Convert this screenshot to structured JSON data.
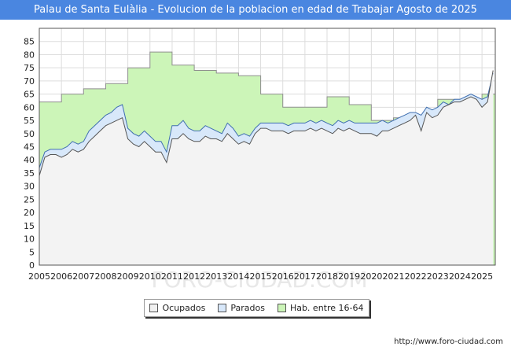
{
  "title": "Palau de Santa Eulàlia - Evolucion de la poblacion en edad de Trabajar Agosto de 2025",
  "watermark": "FORO-CIUDAD.COM",
  "source": "http://www.foro-ciudad.com",
  "colors": {
    "title_bg": "#4a86e0",
    "hab_fill": "#ccf5b8",
    "hab_line": "#8f8f8f",
    "parados_fill": "#d8e8fa",
    "parados_line": "#3f6fb0",
    "ocupados_fill": "#f3f3f3",
    "ocupados_line": "#555555"
  },
  "legend": [
    {
      "label": "Ocupados",
      "color": "#f0f0f0"
    },
    {
      "label": "Parados",
      "color": "#d8e8fa"
    },
    {
      "label": "Hab. entre 16-64",
      "color": "#ccf5b8"
    }
  ],
  "chart_data": {
    "type": "area",
    "title": "Palau de Santa Eulàlia - Evolucion de la poblacion en edad de Trabajar Agosto de 2025",
    "xlabel": "",
    "ylabel": "",
    "xlim": [
      2005,
      2025.6
    ],
    "ylim": [
      0,
      90
    ],
    "x_ticks": [
      "2005",
      "2006",
      "2007",
      "2008",
      "2009",
      "2010",
      "2011",
      "2012",
      "2013",
      "2014",
      "2015",
      "2016",
      "2017",
      "2018",
      "2019",
      "2020",
      "2021",
      "2022",
      "2023",
      "2024",
      "2025"
    ],
    "y_ticks": [
      0,
      5,
      10,
      15,
      20,
      25,
      30,
      35,
      40,
      45,
      50,
      55,
      60,
      65,
      70,
      75,
      80,
      85
    ],
    "grid": true,
    "legend_position": "bottom",
    "series": [
      {
        "name": "Hab. entre 16-64",
        "step": true,
        "x": [
          2005,
          2006,
          2007,
          2008,
          2009,
          2010,
          2011,
          2012,
          2013,
          2014,
          2015,
          2016,
          2017,
          2018,
          2019,
          2020,
          2021,
          2022,
          2023,
          2024,
          2025
        ],
        "values": [
          62,
          65,
          67,
          69,
          75,
          81,
          76,
          74,
          73,
          72,
          65,
          60,
          60,
          64,
          61,
          55,
          56,
          57,
          63,
          63,
          65
        ]
      },
      {
        "name": "Parados",
        "x": [
          2005,
          2005.25,
          2005.5,
          2005.75,
          2006,
          2006.25,
          2006.5,
          2006.75,
          2007,
          2007.25,
          2007.5,
          2007.75,
          2008,
          2008.25,
          2008.5,
          2008.75,
          2009,
          2009.25,
          2009.5,
          2009.75,
          2010,
          2010.25,
          2010.5,
          2010.75,
          2011,
          2011.25,
          2011.5,
          2011.75,
          2012,
          2012.25,
          2012.5,
          2012.75,
          2013,
          2013.25,
          2013.5,
          2013.75,
          2014,
          2014.25,
          2014.5,
          2014.75,
          2015,
          2015.25,
          2015.5,
          2015.75,
          2016,
          2016.25,
          2016.5,
          2016.75,
          2017,
          2017.25,
          2017.5,
          2017.75,
          2018,
          2018.25,
          2018.5,
          2018.75,
          2019,
          2019.25,
          2019.5,
          2019.75,
          2020,
          2020.25,
          2020.5,
          2020.75,
          2021,
          2021.25,
          2021.5,
          2021.75,
          2022,
          2022.25,
          2022.5,
          2022.75,
          2023,
          2023.25,
          2023.5,
          2023.75,
          2024,
          2024.25,
          2024.5,
          2024.75,
          2025,
          2025.25,
          2025.5
        ],
        "values": [
          37,
          43,
          44,
          44,
          44,
          45,
          47,
          46,
          47,
          51,
          53,
          55,
          57,
          58,
          60,
          61,
          52,
          50,
          49,
          51,
          49,
          47,
          47,
          43,
          53,
          53,
          55,
          52,
          51,
          51,
          53,
          52,
          51,
          50,
          54,
          52,
          49,
          50,
          49,
          52,
          54,
          54,
          54,
          54,
          54,
          53,
          54,
          54,
          54,
          55,
          54,
          55,
          54,
          53,
          55,
          54,
          55,
          54,
          54,
          54,
          54,
          54,
          55,
          54,
          55,
          56,
          57,
          58,
          58,
          57,
          60,
          59,
          60,
          62,
          61,
          63,
          63,
          64,
          65,
          64,
          63,
          64,
          73
        ]
      },
      {
        "name": "Ocupados",
        "x": [
          2005,
          2005.25,
          2005.5,
          2005.75,
          2006,
          2006.25,
          2006.5,
          2006.75,
          2007,
          2007.25,
          2007.5,
          2007.75,
          2008,
          2008.25,
          2008.5,
          2008.75,
          2009,
          2009.25,
          2009.5,
          2009.75,
          2010,
          2010.25,
          2010.5,
          2010.75,
          2011,
          2011.25,
          2011.5,
          2011.75,
          2012,
          2012.25,
          2012.5,
          2012.75,
          2013,
          2013.25,
          2013.5,
          2013.75,
          2014,
          2014.25,
          2014.5,
          2014.75,
          2015,
          2015.25,
          2015.5,
          2015.75,
          2016,
          2016.25,
          2016.5,
          2016.75,
          2017,
          2017.25,
          2017.5,
          2017.75,
          2018,
          2018.25,
          2018.5,
          2018.75,
          2019,
          2019.25,
          2019.5,
          2019.75,
          2020,
          2020.25,
          2020.5,
          2020.75,
          2021,
          2021.25,
          2021.5,
          2021.75,
          2022,
          2022.25,
          2022.5,
          2022.75,
          2023,
          2023.25,
          2023.5,
          2023.75,
          2024,
          2024.25,
          2024.5,
          2024.75,
          2025,
          2025.25,
          2025.5
        ],
        "values": [
          34,
          41,
          42,
          42,
          41,
          42,
          44,
          43,
          44,
          47,
          49,
          51,
          53,
          54,
          55,
          56,
          48,
          46,
          45,
          47,
          45,
          43,
          43,
          39,
          48,
          48,
          50,
          48,
          47,
          47,
          49,
          48,
          48,
          47,
          50,
          48,
          46,
          47,
          46,
          50,
          52,
          52,
          51,
          51,
          51,
          50,
          51,
          51,
          51,
          52,
          51,
          52,
          51,
          50,
          52,
          51,
          52,
          51,
          50,
          50,
          50,
          49,
          51,
          51,
          52,
          53,
          54,
          55,
          57,
          51,
          58,
          56,
          57,
          60,
          61,
          62,
          62,
          63,
          64,
          63,
          60,
          62,
          74
        ]
      }
    ]
  }
}
